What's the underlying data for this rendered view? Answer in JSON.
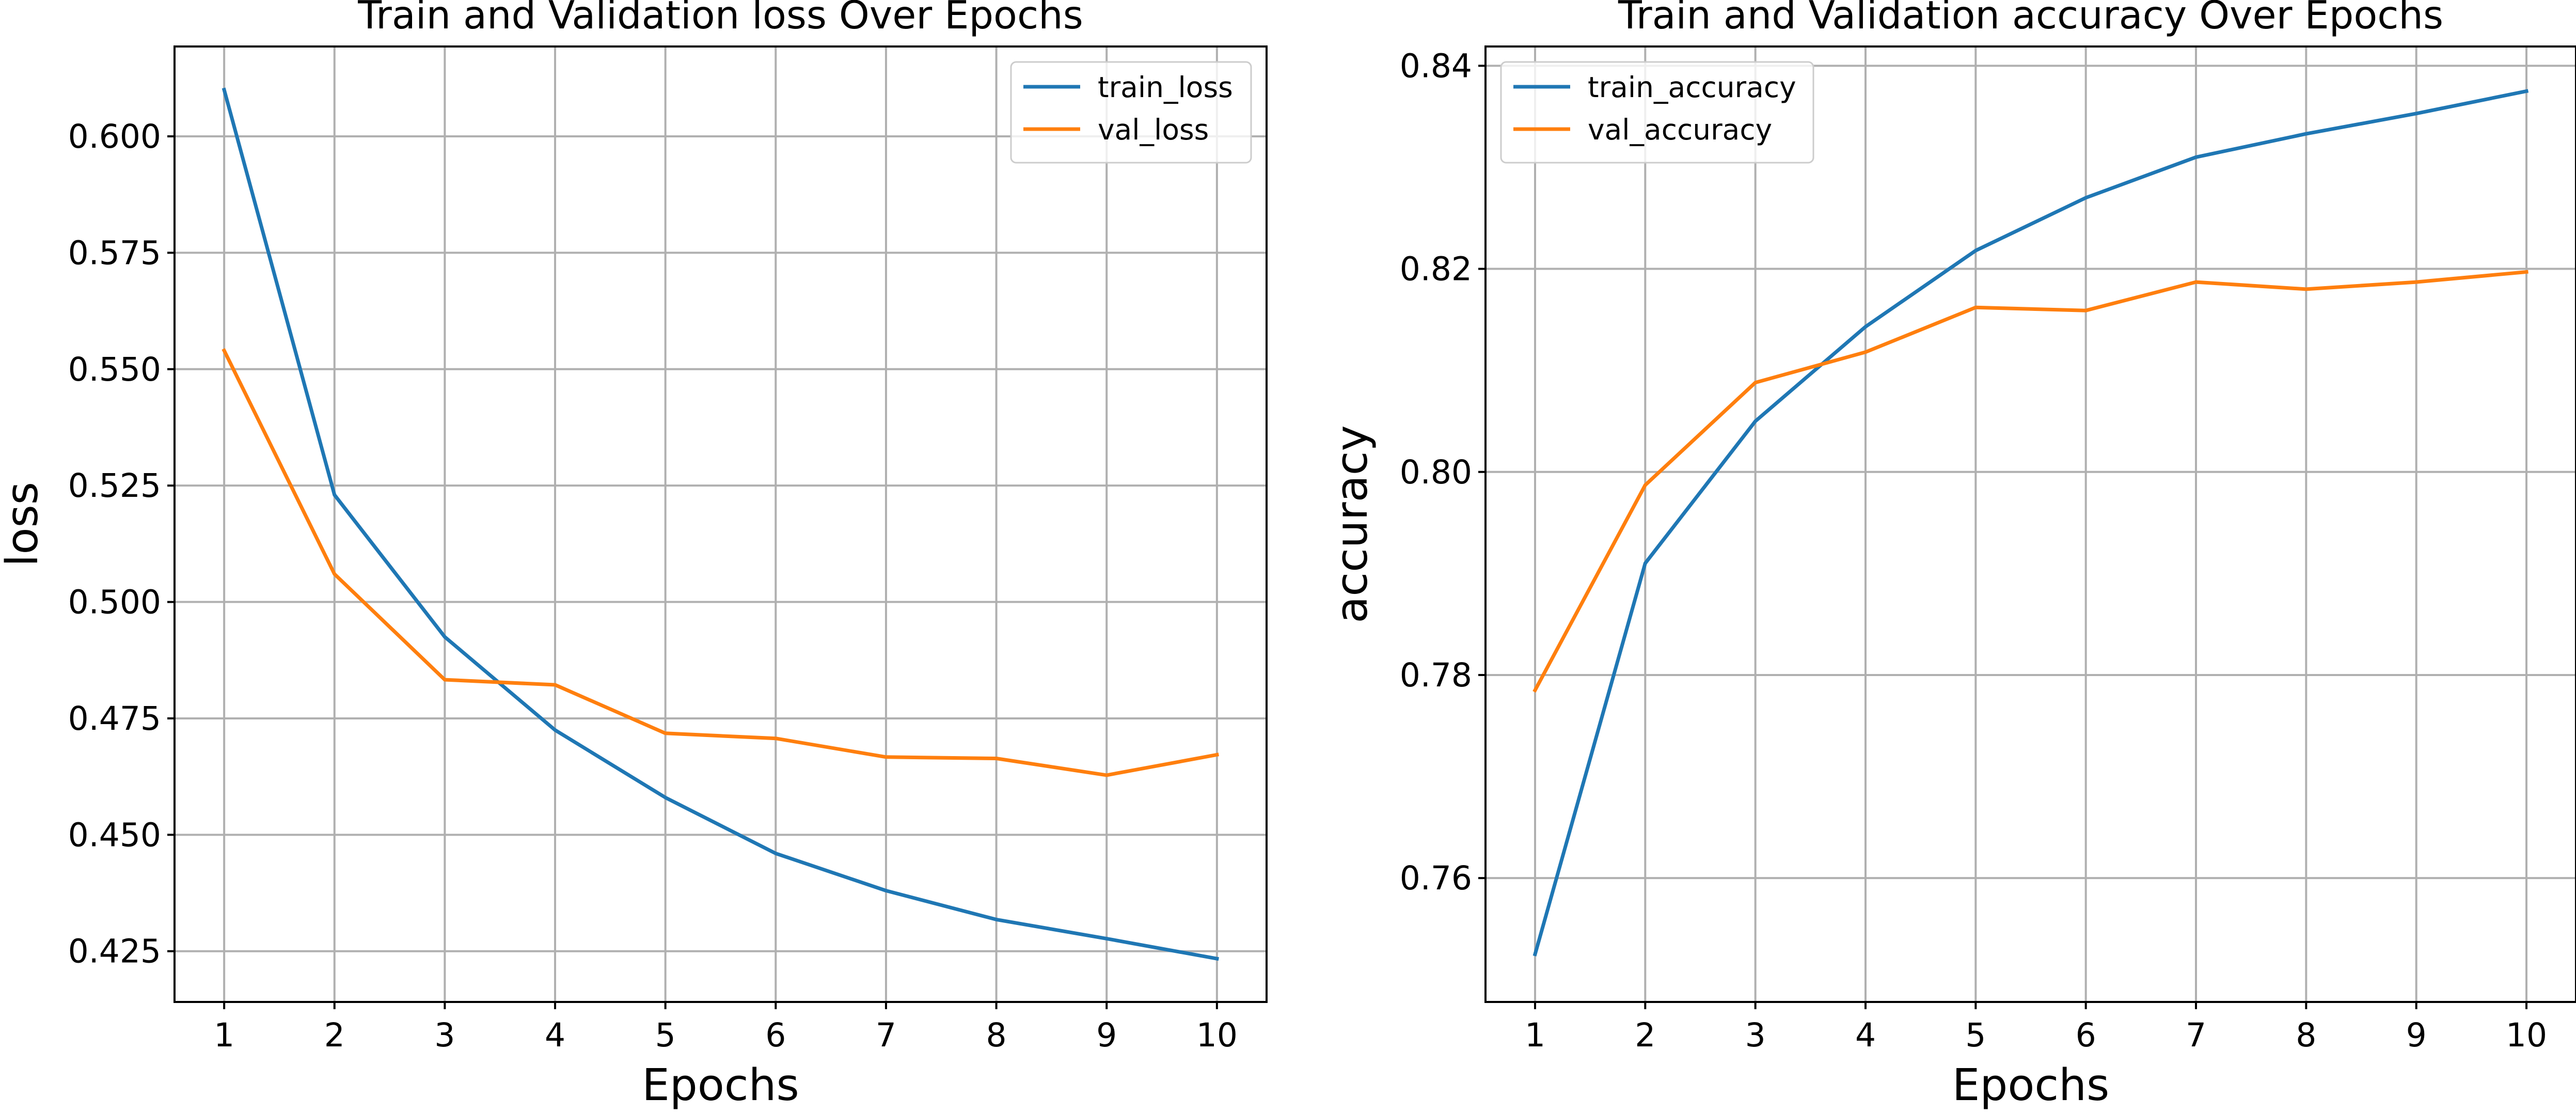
{
  "chart_data": [
    {
      "type": "line",
      "title": "Train and Validation loss Over Epochs",
      "xlabel": "Epochs",
      "ylabel": "loss",
      "x": [
        1,
        2,
        3,
        4,
        5,
        6,
        7,
        8,
        9,
        10
      ],
      "xlim": [
        0.55,
        10.45
      ],
      "ylim": [
        0.4141,
        0.6193
      ],
      "xticks": [
        1,
        2,
        3,
        4,
        5,
        6,
        7,
        8,
        9,
        10
      ],
      "yticks": [
        0.425,
        0.45,
        0.475,
        0.5,
        0.525,
        0.55,
        0.575,
        0.6
      ],
      "ytick_labels": [
        "0.425",
        "0.450",
        "0.475",
        "0.500",
        "0.525",
        "0.550",
        "0.575",
        "0.600"
      ],
      "grid": true,
      "legend_position": "top-right",
      "series": [
        {
          "name": "train_loss",
          "color": "#1f77b4",
          "values": [
            0.61,
            0.523,
            0.4925,
            0.4725,
            0.458,
            0.446,
            0.438,
            0.4318,
            0.4277,
            0.4234
          ]
        },
        {
          "name": "val_loss",
          "color": "#ff7f0e",
          "values": [
            0.554,
            0.506,
            0.4833,
            0.4822,
            0.4718,
            0.4707,
            0.4667,
            0.4664,
            0.4628,
            0.4672
          ]
        }
      ]
    },
    {
      "type": "line",
      "title": "Train and Validation accuracy Over Epochs",
      "xlabel": "Epochs",
      "ylabel": "accuracy",
      "x": [
        1,
        2,
        3,
        4,
        5,
        6,
        7,
        8,
        9,
        10
      ],
      "xlim": [
        0.55,
        10.45
      ],
      "ylim": [
        0.7478,
        0.8419
      ],
      "xticks": [
        1,
        2,
        3,
        4,
        5,
        6,
        7,
        8,
        9,
        10
      ],
      "yticks": [
        0.76,
        0.78,
        0.8,
        0.82,
        0.84
      ],
      "ytick_labels": [
        "0.76",
        "0.78",
        "0.80",
        "0.82",
        "0.84"
      ],
      "grid": true,
      "legend_position": "top-left",
      "series": [
        {
          "name": "train_accuracy",
          "color": "#1f77b4",
          "values": [
            0.7525,
            0.791,
            0.805,
            0.8143,
            0.8218,
            0.827,
            0.831,
            0.8333,
            0.8353,
            0.8375
          ]
        },
        {
          "name": "val_accuracy",
          "color": "#ff7f0e",
          "values": [
            0.7785,
            0.7987,
            0.8088,
            0.8118,
            0.8162,
            0.8159,
            0.8187,
            0.818,
            0.8187,
            0.8197
          ]
        }
      ]
    }
  ]
}
